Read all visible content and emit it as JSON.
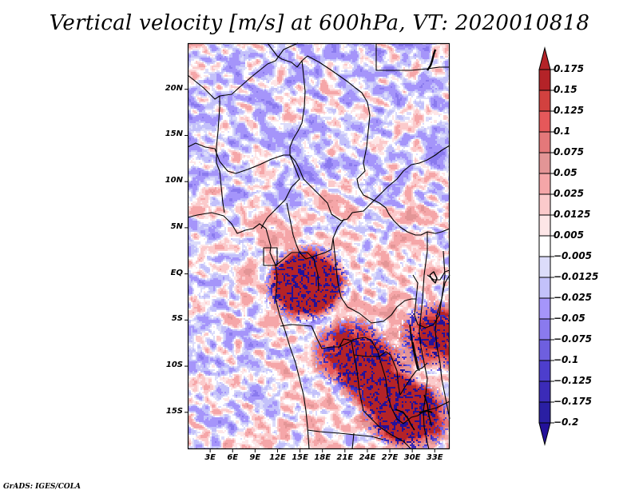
{
  "title": "Vertical velocity [m/s] at 600hPa, VT: 2020010818",
  "credit": "GrADS: IGES/COLA",
  "chart_data": {
    "type": "heatmap",
    "title": "Vertical velocity [m/s] at 600hPa, VT: 2020010818",
    "variable": "Vertical velocity",
    "units": "m/s",
    "level": "600hPa",
    "valid_time": "2020010818",
    "region": "Central / Southern Africa",
    "lon_range": [
      0,
      35
    ],
    "lat_range": [
      -19,
      25
    ],
    "lat_ticks": [
      "20N",
      "15N",
      "10N",
      "5N",
      "EQ",
      "5S",
      "10S",
      "15S"
    ],
    "lat_tick_values": [
      20,
      15,
      10,
      5,
      0,
      -5,
      -10,
      -15
    ],
    "lon_ticks": [
      "3E",
      "6E",
      "9E",
      "12E",
      "15E",
      "18E",
      "21E",
      "24E",
      "27E",
      "30E",
      "33E"
    ],
    "lon_tick_values": [
      3,
      6,
      9,
      12,
      15,
      18,
      21,
      24,
      27,
      30,
      33
    ],
    "colorbar": {
      "orientation": "vertical",
      "extend": "both",
      "levels": [
        0.175,
        0.15,
        0.125,
        0.1,
        0.075,
        0.05,
        0.025,
        0.0125,
        0.005,
        -0.005,
        -0.0125,
        -0.025,
        -0.05,
        -0.075,
        -0.1,
        -0.125,
        -0.175,
        -0.2
      ],
      "level_labels": [
        "0.175",
        "0.15",
        "0.125",
        "0.1",
        "0.075",
        "0.05",
        "0.025",
        "0.0125",
        "0.005",
        "−0.005",
        "−0.0125",
        "−0.025",
        "−0.05",
        "−0.075",
        "−0.1",
        "−0.125",
        "−0.175",
        "−0.2"
      ],
      "colors": [
        "#b42328",
        "#d2413f",
        "#e6585a",
        "#e4787a",
        "#e39596",
        "#f5a6a8",
        "#fbcacb",
        "#fde6e7",
        "#ffffff",
        "#dcdcfa",
        "#c3c1fa",
        "#a595fa",
        "#8a7aee",
        "#6e5fdf",
        "#4d3ecd",
        "#3b2bb8",
        "#2a1fa3"
      ],
      "over_color": "#b42328",
      "under_color": "#23119a"
    }
  }
}
